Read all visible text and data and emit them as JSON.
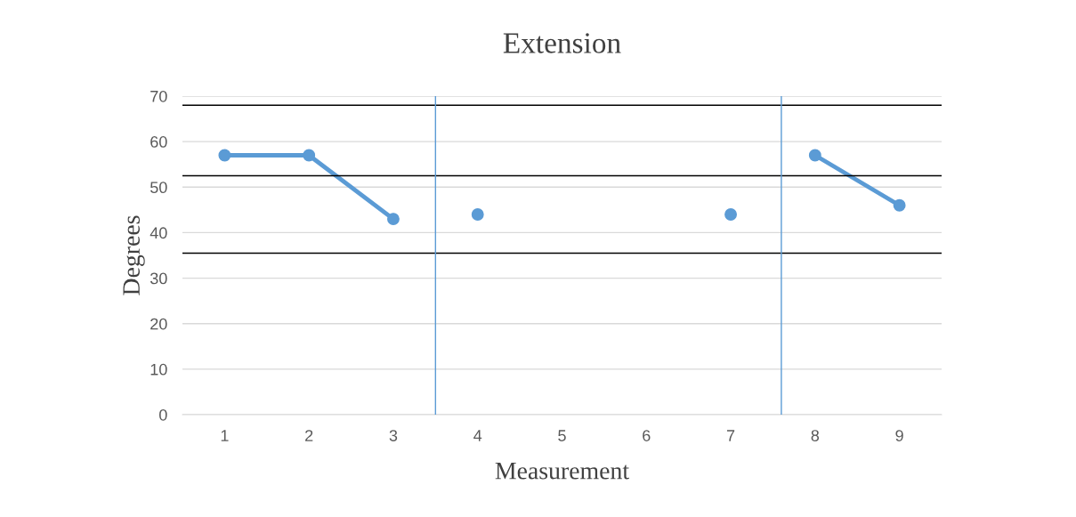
{
  "chart_data": {
    "type": "line",
    "title": "Extension",
    "xlabel": "Measurement",
    "ylabel": "Degrees",
    "x": [
      1,
      2,
      3,
      4,
      5,
      6,
      7,
      8,
      9
    ],
    "series": [
      {
        "color": "#5b9bd5",
        "values": [
          57,
          57,
          43,
          null,
          null,
          null,
          null,
          null,
          null
        ]
      },
      {
        "color": "#5b9bd5",
        "values": [
          null,
          null,
          null,
          44,
          null,
          null,
          44,
          null,
          null
        ]
      },
      {
        "color": "#5b9bd5",
        "values": [
          null,
          null,
          null,
          null,
          null,
          null,
          null,
          57,
          46
        ]
      }
    ],
    "xlim": [
      0.5,
      9.5
    ],
    "xticks": [
      1,
      2,
      3,
      4,
      5,
      6,
      7,
      8,
      9
    ],
    "ylim": [
      0,
      70
    ],
    "yticks": [
      0,
      10,
      20,
      30,
      40,
      50,
      60,
      70
    ],
    "ref_lines": [
      {
        "axis": "y",
        "value": 68,
        "color": "#000000"
      },
      {
        "axis": "y",
        "value": 52.5,
        "color": "#000000"
      },
      {
        "axis": "y",
        "value": 35.5,
        "color": "#000000"
      },
      {
        "axis": "x",
        "value": 3.5,
        "color": "#5b9bd5"
      },
      {
        "axis": "x",
        "value": 7.6,
        "color": "#5b9bd5"
      }
    ],
    "grid": "y",
    "marker": "circle",
    "line_style": "solid",
    "legend": false
  }
}
